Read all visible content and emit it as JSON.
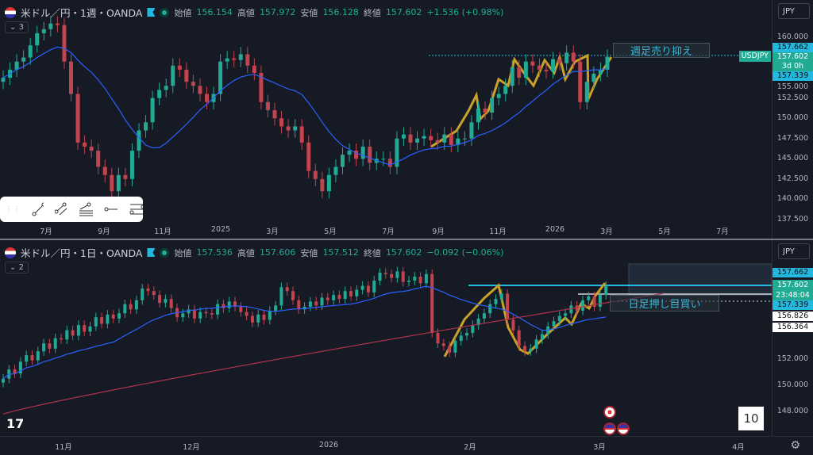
{
  "colors": {
    "bg": "#161a25",
    "up": "#22ab94",
    "down": "#c2444e",
    "ma_short": "#2962ff",
    "ma_long": "#b2344a",
    "drawing": "#c9a227",
    "accent": "#22b8e0"
  },
  "pane1": {
    "symbol": "米ドル／円・1週・OANDA",
    "ohlc": {
      "open_label": "始値",
      "open": "156.154",
      "high_label": "高値",
      "high": "157.972",
      "low_label": "安値",
      "low": "156.128",
      "close_label": "終値",
      "close": "157.602",
      "change": "+1.536 (+0.98%)"
    },
    "collapse": "3",
    "currency": "JPY",
    "annotation": "週足売り抑え",
    "price_labels": {
      "upper": "157.662",
      "symbol_tag": "USDJPY",
      "last": "157.602",
      "countdown": "3d 0h",
      "lower": "157.339"
    },
    "y_ticks": [
      "160.000",
      "155.000",
      "152.500",
      "150.000",
      "147.500",
      "145.000",
      "142.500",
      "140.000",
      "137.500"
    ],
    "x_ticks": [
      "7月",
      "9月",
      "11月",
      "2025",
      "3月",
      "5月",
      "7月",
      "9月",
      "11月",
      "2026",
      "3月",
      "5月",
      "7月"
    ]
  },
  "pane2": {
    "symbol": "米ドル／円・1日・OANDA",
    "ohlc": {
      "open_label": "始値",
      "open": "157.536",
      "high_label": "高値",
      "high": "157.606",
      "low_label": "安値",
      "low": "157.512",
      "close_label": "終値",
      "close": "157.602",
      "change": "−0.092 (−0.06%)"
    },
    "collapse": "2",
    "currency": "JPY",
    "annotation": "日足押し目買い",
    "price_labels": {
      "upper": "157.662",
      "last": "157.602",
      "countdown": "23:48:04",
      "lower": "157.339",
      "level1": "156.826",
      "level2": "156.364"
    },
    "y_ticks": [
      "152.000",
      "150.000",
      "148.000"
    ],
    "x_ticks": [
      "11月",
      "12月",
      "2026",
      "2月",
      "3月",
      "4月"
    ],
    "badge": "10"
  },
  "chart_data": [
    {
      "type": "candlestick",
      "title": "米ドル／円・1週・OANDA",
      "ylim": [
        137.5,
        160
      ],
      "interval": "1W",
      "closes": [
        155,
        156,
        157,
        157.5,
        159,
        160.5,
        161,
        161.7,
        161.5,
        157,
        153,
        147,
        146.5,
        146,
        144,
        143,
        141,
        143,
        142.5,
        146,
        148.5,
        149.5,
        152.5,
        153.5,
        154,
        156.5,
        156,
        154.5,
        154,
        153,
        152,
        153,
        157,
        157.4,
        157.2,
        157.9,
        156.5,
        155.6,
        152,
        151,
        150,
        149,
        148.5,
        149,
        147,
        143.5,
        142.5,
        141,
        143,
        144,
        145.5,
        146,
        145,
        146.5,
        144.5,
        145,
        145,
        144,
        147.5,
        148,
        147,
        147.5,
        147.8,
        147.3,
        147,
        148,
        146.7,
        147.5,
        147.5,
        149.5,
        151.2,
        150.7,
        152.5,
        153,
        154,
        156.3,
        155,
        157,
        156.5,
        156,
        155.8,
        157.3,
        156.8,
        158.1,
        157,
        152,
        154.5,
        155.5,
        156,
        157.6
      ],
      "ma_period": 13
    },
    {
      "type": "candlestick",
      "title": "米ドル／円・1日・OANDA",
      "ylim": [
        147,
        160
      ],
      "interval": "1D",
      "closes": [
        150.5,
        151.2,
        150.9,
        151.8,
        152.3,
        151.9,
        152.6,
        153.2,
        152.8,
        153.6,
        153.5,
        154.2,
        153.8,
        154.6,
        154.1,
        154.5,
        155.2,
        154.7,
        155.4,
        155.1,
        155.5,
        156.2,
        155.8,
        156.5,
        157.4,
        157.2,
        156.9,
        156.3,
        156.6,
        155.9,
        155.2,
        155.5,
        155.8,
        155.1,
        155.6,
        155.5,
        155.4,
        156.2,
        155.9,
        156.4,
        156,
        155.6,
        155.3,
        154.8,
        155.4,
        155,
        155.7,
        156.1,
        157.5,
        157.2,
        156.5,
        155.8,
        156,
        156.4,
        156.1,
        156.7,
        156.5,
        156.9,
        156.6,
        157.2,
        156.8,
        157.3,
        157.6,
        157.1,
        158,
        158.6,
        158.5,
        158.2,
        158.7,
        157.9,
        158,
        158.3,
        157.8,
        158.5,
        154,
        153.2,
        153,
        152.5,
        153.4,
        153.8,
        154,
        154.6,
        155.1,
        155.5,
        156.2,
        156.6,
        157,
        155,
        154.2,
        153,
        152.6,
        152.8,
        153.5,
        153.9,
        154.5,
        154.9,
        155.3,
        155.5,
        156.1,
        155.7,
        156.5,
        156.8,
        156,
        156.9,
        157.6
      ],
      "ma_period": 20,
      "long_ma": {
        "start": 147.8,
        "end": 156.3
      }
    }
  ]
}
